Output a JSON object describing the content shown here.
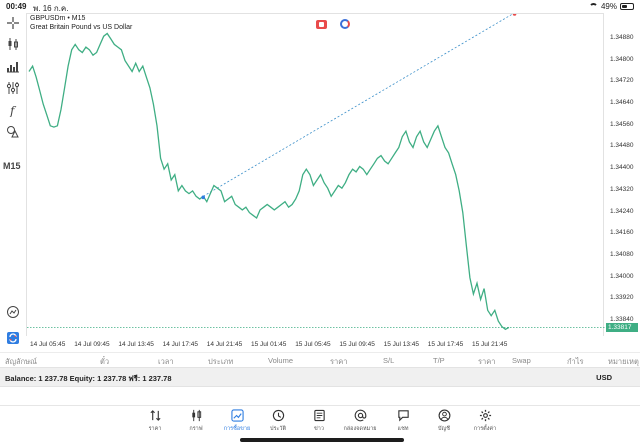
{
  "status_bar": {
    "time": "00:49",
    "date": "พ. 16 ก.ค.",
    "battery": "49%",
    "battery_level": 0.49
  },
  "toolbar": {
    "timeframe": "M15"
  },
  "chart": {
    "symbol": "GBPUSDm • M15",
    "description": "Great Britain Pound vs US Dollar",
    "current_price_label": "1.33817"
  },
  "chart_data": {
    "type": "line",
    "color": "#3fae84",
    "y_ticks": [
      "1.34880",
      "1.34800",
      "1.34720",
      "1.34640",
      "1.34560",
      "1.34480",
      "1.34400",
      "1.34320",
      "1.34240",
      "1.34160",
      "1.34080",
      "1.34000",
      "1.33920",
      "1.33840"
    ],
    "x_ticks": [
      "14 Jul 05:45",
      "14 Jul 09:45",
      "14 Jul 13:45",
      "14 Jul 17:45",
      "14 Jul 21:45",
      "15 Jul 01:45",
      "15 Jul 05:45",
      "15 Jul 09:45",
      "15 Jul 13:45",
      "15 Jul 17:45",
      "15 Jul 21:45"
    ],
    "ylim": [
      1.338,
      1.34935
    ],
    "current_price": 1.33817,
    "series": [
      {
        "values": [
          1.3476,
          1.3478,
          1.3474,
          1.3469,
          1.3464,
          1.346,
          1.3456,
          1.34555,
          1.3456,
          1.3462,
          1.347,
          1.3478,
          1.3484,
          1.3486,
          1.3484,
          1.3483,
          1.3485,
          1.3484,
          1.3482,
          1.3483,
          1.3486,
          1.3489,
          1.349,
          1.3488,
          1.3486,
          1.3485,
          1.3484,
          1.348,
          1.3478,
          1.3476,
          1.3479,
          1.3476,
          1.3478,
          1.3474,
          1.347,
          1.3464,
          1.3456,
          1.3444,
          1.344,
          1.3442,
          1.3436,
          1.3438,
          1.3432,
          1.3434,
          1.3432,
          1.3431,
          1.3432,
          1.343,
          1.3429,
          1.343,
          1.3428,
          1.3431,
          1.3434,
          1.3433,
          1.3432,
          1.3428,
          1.3429,
          1.343,
          1.3427,
          1.3426,
          1.3425,
          1.3426,
          1.3424,
          1.3423,
          1.3422,
          1.3425,
          1.3426,
          1.3427,
          1.3426,
          1.3425,
          1.3426,
          1.3427,
          1.3428,
          1.3426,
          1.3427,
          1.3429,
          1.3432,
          1.3438,
          1.344,
          1.3438,
          1.3434,
          1.3436,
          1.3438,
          1.3435,
          1.3433,
          1.343,
          1.3432,
          1.3434,
          1.3433,
          1.3435,
          1.3438,
          1.344,
          1.3439,
          1.3441,
          1.344,
          1.3438,
          1.344,
          1.3442,
          1.3444,
          1.3445,
          1.3443,
          1.3442,
          1.3444,
          1.3446,
          1.3448,
          1.3452,
          1.3454,
          1.345,
          1.3448,
          1.3452,
          1.3454,
          1.345,
          1.3448,
          1.3451,
          1.3454,
          1.3456,
          1.3452,
          1.3448,
          1.3446,
          1.3442,
          1.3438,
          1.3432,
          1.3424,
          1.3412,
          1.34,
          1.3394,
          1.3398,
          1.3392,
          1.3396,
          1.3388,
          1.3386,
          1.3388,
          1.3384,
          1.3382,
          1.3381,
          1.33817
        ]
      }
    ],
    "dotted_line": {
      "from_index": 49,
      "to_index": 136
    }
  },
  "columns": {
    "c1": "สัญลักษณ์",
    "c2": "ตั๋ว",
    "c3": "เวลา",
    "c4": "ประเภท",
    "c5": "Volume",
    "c6": "ราคา",
    "c7": "S/L",
    "c8": "T/P",
    "c9": "ราคา",
    "c10": "Swap",
    "c11": "กำไร",
    "c12": "หมายเหตุ"
  },
  "balance": {
    "text": "Balance: 1 237.78 Equity: 1 237.78 ฟรี: 1 237.78",
    "currency": "USD"
  },
  "nav": {
    "quotes": "ราคา",
    "chart": "กราฟ",
    "trade": "การซื้อขาย",
    "history": "ประวัติ",
    "news": "ข่าว",
    "mailbox": "กล่องจดหมาย",
    "chat": "แชท",
    "accounts": "บัญชี",
    "settings": "การตั้งค่า"
  }
}
